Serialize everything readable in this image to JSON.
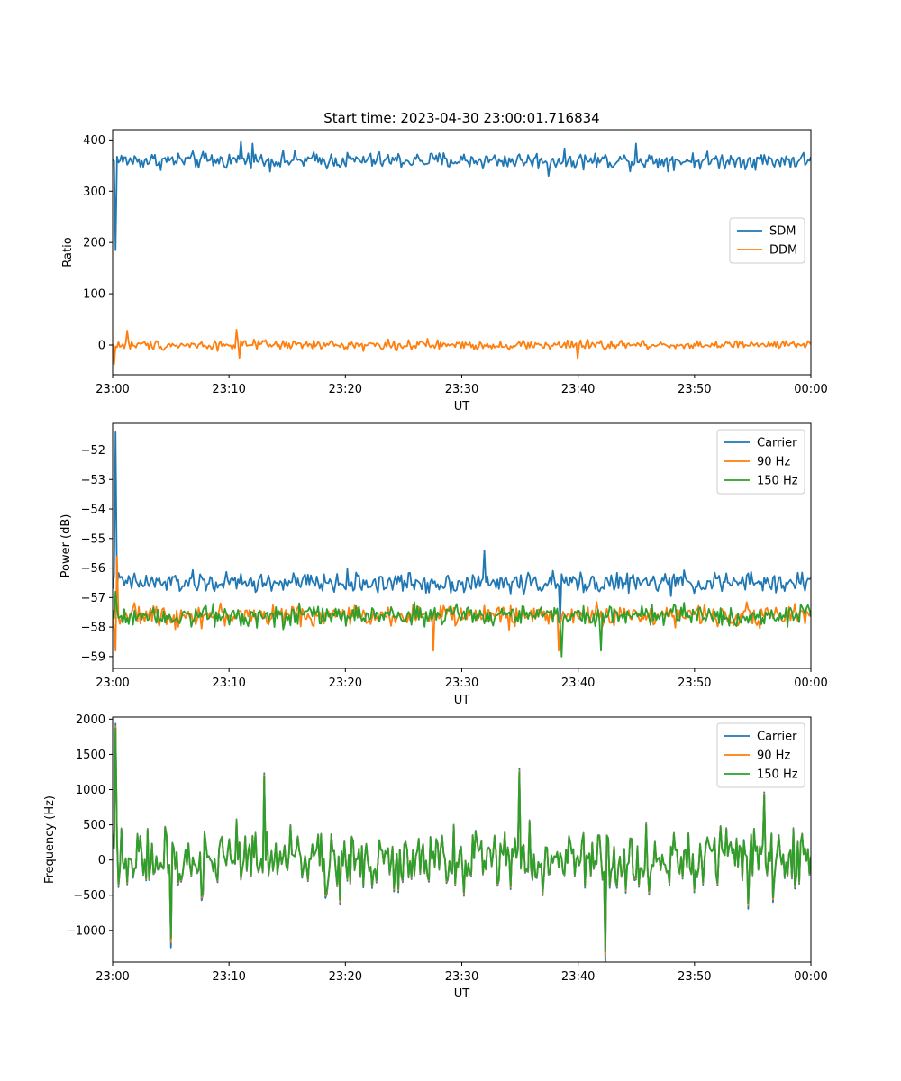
{
  "figure_title": "Start time: 2023-04-30 23:00:01.716834",
  "colors": {
    "blue": "#1f77b4",
    "orange": "#ff7f0e",
    "green": "#2ca02c"
  },
  "chart_data": [
    {
      "type": "line",
      "title": "Start time: 2023-04-30 23:00:01.716834",
      "xlabel": "UT",
      "ylabel": "Ratio",
      "x_range_minutes": [
        0,
        60
      ],
      "xticks": [
        "23:00",
        "23:10",
        "23:20",
        "23:30",
        "23:40",
        "23:50",
        "00:00"
      ],
      "ylim": [
        -58,
        420
      ],
      "yticks": [
        0,
        100,
        200,
        300,
        400
      ],
      "legend_position": "center-right",
      "grid": false,
      "series": [
        {
          "name": "SDM",
          "color": "#1f77b4",
          "baseline": 360,
          "noise": 14,
          "outliers": [
            [
              0.3,
              185
            ],
            [
              11.0,
              398
            ],
            [
              12.0,
              393
            ],
            [
              37.5,
              330
            ],
            [
              45.0,
              393
            ]
          ]
        },
        {
          "name": "DDM",
          "color": "#ff7f0e",
          "baseline": 0,
          "noise": 8,
          "outliers": [
            [
              0.1,
              -38
            ],
            [
              1.2,
              28
            ],
            [
              10.6,
              30
            ],
            [
              10.9,
              -25
            ],
            [
              40.0,
              -27
            ]
          ]
        }
      ]
    },
    {
      "type": "line",
      "title": "",
      "xlabel": "UT",
      "ylabel": "Power (dB)",
      "x_range_minutes": [
        0,
        60
      ],
      "xticks": [
        "23:00",
        "23:10",
        "23:20",
        "23:30",
        "23:40",
        "23:50",
        "00:00"
      ],
      "ylim": [
        -59.4,
        -51.1
      ],
      "yticks": [
        -52,
        -53,
        -54,
        -55,
        -56,
        -57,
        -58,
        -59
      ],
      "legend_position": "top-right",
      "grid": false,
      "series": [
        {
          "name": "Carrier",
          "color": "#1f77b4",
          "baseline": -56.5,
          "noise": 0.3,
          "outliers": [
            [
              0.2,
              -51.4
            ],
            [
              32.0,
              -55.4
            ],
            [
              38.5,
              -57.8
            ]
          ]
        },
        {
          "name": "90 Hz",
          "color": "#ff7f0e",
          "baseline": -57.6,
          "noise": 0.3,
          "outliers": [
            [
              0.3,
              -58.8
            ],
            [
              0.4,
              -55.6
            ],
            [
              27.6,
              -58.8
            ],
            [
              38.3,
              -58.8
            ]
          ]
        },
        {
          "name": "150 Hz",
          "color": "#2ca02c",
          "baseline": -57.6,
          "noise": 0.3,
          "outliers": [
            [
              0.3,
              -56.8
            ],
            [
              38.6,
              -59.0
            ],
            [
              42.0,
              -58.8
            ]
          ]
        }
      ]
    },
    {
      "type": "line",
      "title": "",
      "xlabel": "UT",
      "ylabel": "Frequency (Hz)",
      "x_range_minutes": [
        0,
        60
      ],
      "xticks": [
        "23:00",
        "23:10",
        "23:20",
        "23:30",
        "23:40",
        "23:50",
        "00:00"
      ],
      "ylim": [
        -1450,
        2030
      ],
      "yticks": [
        -1000,
        -500,
        0,
        500,
        1000,
        1500,
        2000
      ],
      "legend_position": "top-right",
      "grid": false,
      "series": [
        {
          "name": "Carrier",
          "color": "#1f77b4",
          "offset": -60
        },
        {
          "name": "90 Hz",
          "color": "#ff7f0e",
          "offset": -25
        },
        {
          "name": "150 Hz",
          "color": "#2ca02c",
          "offset": 0
        }
      ],
      "shared_signal": {
        "baseline": 0,
        "noise": 380,
        "outliers": [
          [
            0.2,
            1870
          ],
          [
            5.0,
            -1110
          ],
          [
            13.0,
            1190
          ],
          [
            35.0,
            1250
          ],
          [
            42.4,
            -1300
          ],
          [
            56.0,
            930
          ]
        ]
      }
    }
  ]
}
